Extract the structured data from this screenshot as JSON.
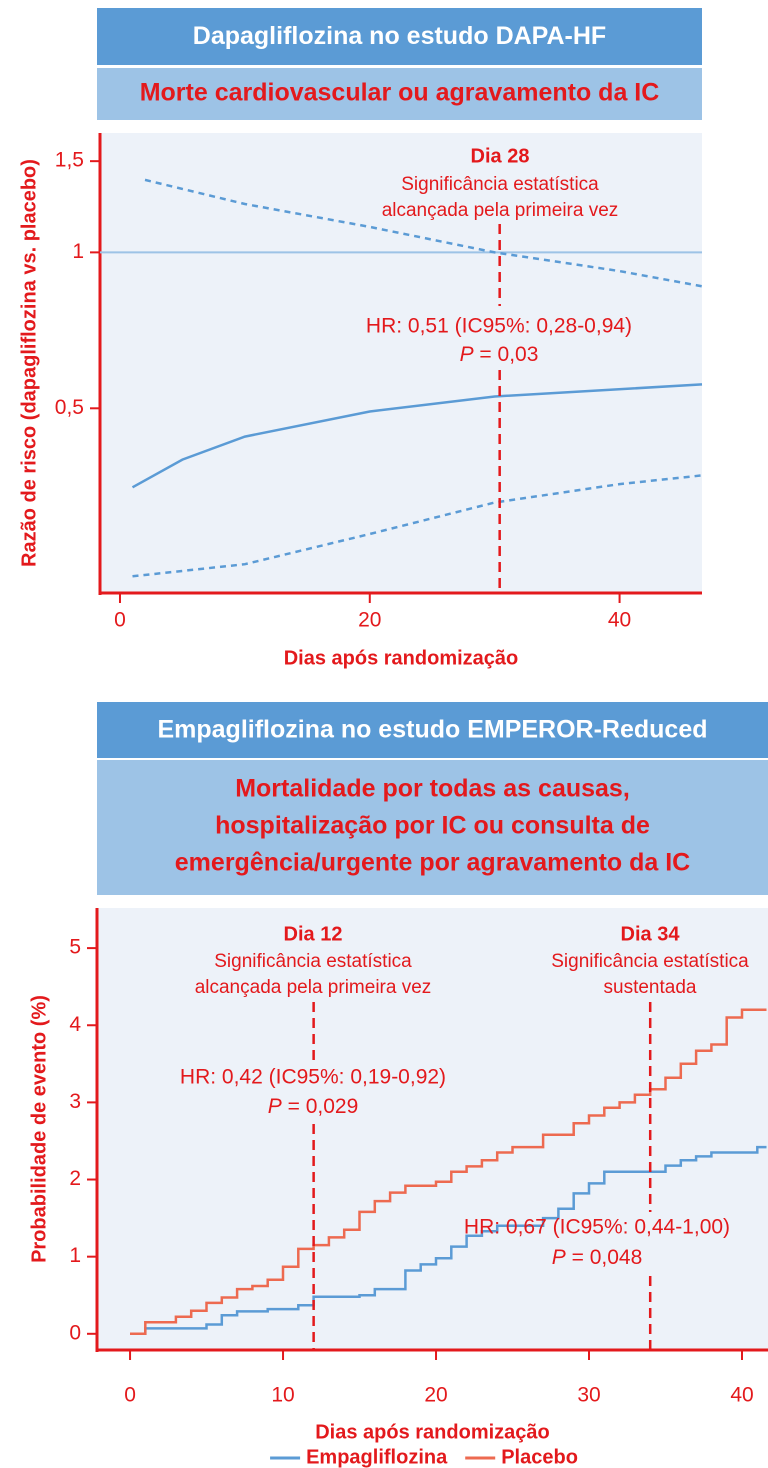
{
  "chart_data": [
    {
      "type": "line",
      "title": "Dapagliflozina no estudo DAPA-HF",
      "subtitle": "Morte cardiovascular ou agravamento da IC",
      "ylabel": "Razão de risco (dapagliflozina vs. placebo)",
      "xlabel": "Dias após randomização",
      "log_y": true,
      "xlim": [
        -1.6,
        46.6
      ],
      "ylim": [
        0.22,
        1.7
      ],
      "xticks": [
        0,
        20,
        40
      ],
      "yticks": [
        {
          "value": 1.5,
          "label": "1,5"
        },
        1,
        {
          "value": 0.5,
          "label": "0,5"
        }
      ],
      "hline": 1,
      "hline_color": "#9dc3e6",
      "series": [
        {
          "color": "#5b9bd5",
          "style": "solid",
          "x": [
            1,
            5,
            10,
            20,
            30,
            46.6
          ],
          "values": [
            0.352,
            0.398,
            0.441,
            0.493,
            0.527,
            0.556
          ]
        },
        {
          "color": "#5b9bd5",
          "style": "dashed",
          "x": [
            2,
            10,
            20,
            30,
            40,
            46.6
          ],
          "values": [
            1.38,
            1.24,
            1.12,
            1.0,
            0.92,
            0.86
          ]
        },
        {
          "color": "#5b9bd5",
          "style": "dashed",
          "x": [
            1,
            10,
            20,
            30,
            40,
            46.6
          ],
          "values": [
            0.237,
            0.25,
            0.286,
            0.329,
            0.357,
            0.371
          ]
        }
      ],
      "annotations": [
        {
          "x": 30.4,
          "title": "Dia 28",
          "lines": [
            "Significância estatística",
            "alcançada pela primeira vez"
          ],
          "hr": "HR: 0,51 (IC95%: 0,28-0,94)",
          "p": "P",
          "p_value": " = 0,03"
        }
      ]
    },
    {
      "type": "step",
      "title": "Empagliflozina no estudo EMPEROR-Reduced",
      "subtitle": [
        "Mortalidade por todas as causas,",
        "hospitalização por IC ou consulta de",
        "emergência/urgente por agravamento da IC"
      ],
      "ylabel": "Probabilidade de evento (%)",
      "xlabel": "Dias após randomização",
      "xlim": [
        -2.16,
        41.7
      ],
      "ylim": [
        -0.21,
        5.52
      ],
      "xticks": [
        0,
        10,
        20,
        30,
        40
      ],
      "yticks": [
        0,
        1,
        2,
        3,
        4,
        5
      ],
      "legend": "bottom",
      "series": [
        {
          "name": "Empagliflozina",
          "color": "#5b9bd5",
          "x": [
            0,
            1,
            5,
            6,
            7,
            9,
            11,
            12,
            15,
            16,
            18,
            19,
            20,
            21,
            22,
            23,
            24,
            27,
            28,
            29,
            30,
            31,
            35,
            36,
            37,
            38,
            41,
            41.6
          ],
          "values": [
            0,
            0.07,
            0.12,
            0.24,
            0.29,
            0.32,
            0.37,
            0.48,
            0.5,
            0.58,
            0.82,
            0.9,
            0.98,
            1.13,
            1.27,
            1.33,
            1.4,
            1.5,
            1.62,
            1.82,
            1.95,
            2.1,
            2.18,
            2.25,
            2.3,
            2.35,
            2.42,
            2.42
          ]
        },
        {
          "name": "Placebo",
          "color": "#ed6a50",
          "x": [
            0,
            1,
            3,
            4,
            5,
            6,
            7,
            8,
            9,
            10,
            11,
            12,
            13,
            14,
            15,
            16,
            17,
            18,
            20,
            21,
            22,
            23,
            24,
            25,
            27,
            29,
            30,
            31,
            32,
            33,
            34,
            35,
            36,
            37,
            38,
            39,
            40,
            41.6
          ],
          "values": [
            0,
            0.15,
            0.22,
            0.3,
            0.4,
            0.47,
            0.58,
            0.62,
            0.7,
            0.87,
            1.1,
            1.15,
            1.25,
            1.35,
            1.58,
            1.72,
            1.83,
            1.92,
            1.97,
            2.1,
            2.17,
            2.25,
            2.35,
            2.42,
            2.58,
            2.73,
            2.83,
            2.93,
            3.0,
            3.1,
            3.17,
            3.32,
            3.5,
            3.67,
            3.75,
            4.1,
            4.2,
            4.2
          ]
        }
      ],
      "annotations": [
        {
          "x": 12,
          "title": "Dia 12",
          "lines": [
            "Significância estatística",
            "alcançada pela primeira vez"
          ],
          "hr": "HR: 0,42 (IC95%: 0,19-0,92)",
          "p": "P",
          "p_value": " = 0,029"
        },
        {
          "x": 34,
          "title": "Dia 34",
          "lines": [
            "Significância estatística",
            "sustentada"
          ],
          "hr": "HR: 0,67 (IC95%: 0,44-1,00)",
          "p": "P",
          "p_value": " = 0,048"
        }
      ]
    }
  ]
}
